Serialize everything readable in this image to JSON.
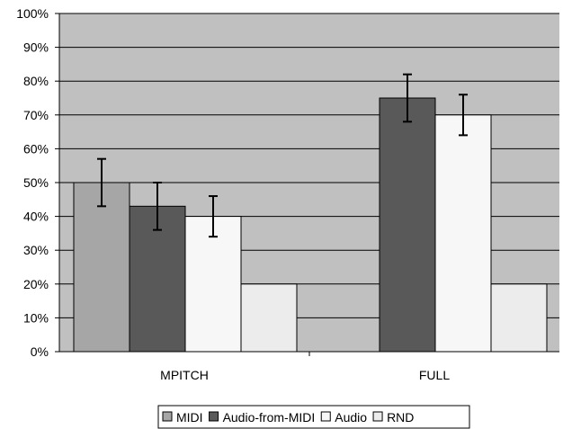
{
  "chart_data": {
    "type": "bar",
    "categories": [
      "MPITCH",
      "FULL"
    ],
    "series": [
      {
        "name": "MIDI",
        "values": [
          50,
          null
        ],
        "errors": [
          7,
          null
        ],
        "color": "#a6a6a6"
      },
      {
        "name": "Audio-from-MIDI",
        "values": [
          43,
          75
        ],
        "errors": [
          7,
          7
        ],
        "color": "#595959"
      },
      {
        "name": "Audio",
        "values": [
          40,
          70
        ],
        "errors": [
          6,
          6
        ],
        "color": "#f7f7f7"
      },
      {
        "name": "RND",
        "values": [
          20,
          20
        ],
        "errors": [
          null,
          null
        ],
        "color": "#ececec"
      }
    ],
    "ylim": [
      0,
      100
    ],
    "yticks": [
      "0%",
      "10%",
      "20%",
      "30%",
      "40%",
      "50%",
      "60%",
      "70%",
      "80%",
      "90%",
      "100%"
    ],
    "plot_background": "#c0c0c0",
    "grid": true,
    "legend_position": "bottom"
  }
}
